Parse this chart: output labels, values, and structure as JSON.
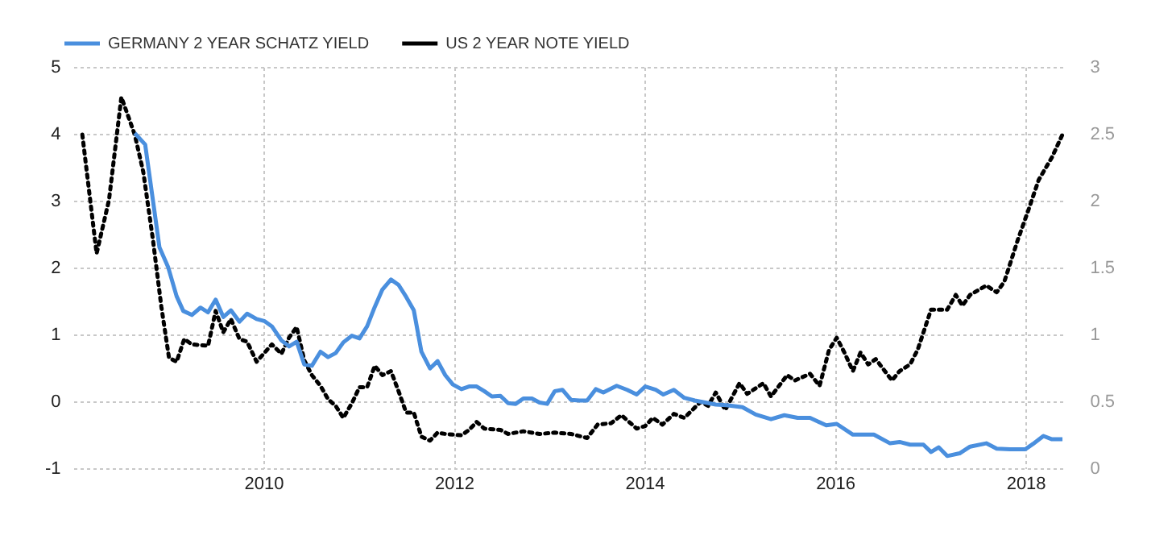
{
  "chart_data": {
    "type": "line",
    "series": [
      {
        "name": "GERMANY 2 YEAR SCHATZ YIELD",
        "color": "#4a8fde",
        "line_style": "solid",
        "x": [
          2008.64,
          2008.75,
          2008.9,
          2008.99,
          2009.08,
          2009.15,
          2009.24,
          2009.33,
          2009.41,
          2009.49,
          2009.57,
          2009.65,
          2009.74,
          2009.82,
          2009.92,
          2010.0,
          2010.08,
          2010.18,
          2010.26,
          2010.34,
          2010.42,
          2010.5,
          2010.59,
          2010.67,
          2010.75,
          2010.83,
          2010.92,
          2011.0,
          2011.08,
          2011.16,
          2011.24,
          2011.33,
          2011.41,
          2011.49,
          2011.57,
          2011.65,
          2011.74,
          2011.82,
          2011.9,
          2011.98,
          2012.07,
          2012.15,
          2012.23,
          2012.31,
          2012.39,
          2012.48,
          2012.56,
          2012.64,
          2012.72,
          2012.81,
          2012.89,
          2012.97,
          2013.05,
          2013.13,
          2013.22,
          2013.31,
          2013.39,
          2013.48,
          2013.56,
          2013.7,
          2013.81,
          2013.91,
          2014.0,
          2014.11,
          2014.19,
          2014.3,
          2014.41,
          2014.52,
          2014.63,
          2014.74,
          2014.85,
          2015.02,
          2015.16,
          2015.32,
          2015.46,
          2015.6,
          2015.73,
          2015.9,
          2016.01,
          2016.18,
          2016.4,
          2016.57,
          2016.67,
          2016.78,
          2016.92,
          2017.0,
          2017.08,
          2017.17,
          2017.3,
          2017.41,
          2017.58,
          2017.69,
          2017.83,
          2017.99,
          2018.07,
          2018.18,
          2018.27,
          2018.38
        ],
        "values": [
          4.02,
          3.85,
          2.31,
          2.02,
          1.58,
          1.36,
          1.3,
          1.41,
          1.34,
          1.53,
          1.27,
          1.37,
          1.2,
          1.32,
          1.24,
          1.21,
          1.13,
          0.92,
          0.83,
          0.9,
          0.56,
          0.54,
          0.75,
          0.67,
          0.73,
          0.89,
          0.99,
          0.95,
          1.13,
          1.42,
          1.68,
          1.83,
          1.75,
          1.57,
          1.37,
          0.75,
          0.5,
          0.61,
          0.4,
          0.26,
          0.19,
          0.23,
          0.23,
          0.16,
          0.08,
          0.09,
          -0.02,
          -0.03,
          0.05,
          0.05,
          -0.01,
          -0.03,
          0.16,
          0.18,
          0.03,
          0.02,
          0.02,
          0.19,
          0.14,
          0.24,
          0.18,
          0.11,
          0.23,
          0.18,
          0.11,
          0.18,
          0.06,
          0.02,
          -0.01,
          -0.04,
          -0.05,
          -0.08,
          -0.19,
          -0.26,
          -0.2,
          -0.24,
          -0.24,
          -0.35,
          -0.33,
          -0.49,
          -0.49,
          -0.62,
          -0.6,
          -0.64,
          -0.64,
          -0.75,
          -0.68,
          -0.81,
          -0.77,
          -0.67,
          -0.62,
          -0.7,
          -0.71,
          -0.71,
          -0.63,
          -0.51,
          -0.56,
          -0.56
        ]
      },
      {
        "name": "US 2 YEAR NOTE YIELD",
        "color": "#000000",
        "line_style": "dotted",
        "axis": "y2",
        "x": [
          2008.09,
          2008.24,
          2008.37,
          2008.5,
          2008.64,
          2008.73,
          2008.83,
          2008.92,
          2009.0,
          2009.08,
          2009.16,
          2009.24,
          2009.41,
          2009.49,
          2009.57,
          2009.65,
          2009.74,
          2009.82,
          2009.92,
          2010.08,
          2010.18,
          2010.26,
          2010.34,
          2010.42,
          2010.5,
          2010.59,
          2010.67,
          2010.75,
          2010.83,
          2010.92,
          2011.0,
          2011.08,
          2011.16,
          2011.24,
          2011.33,
          2011.41,
          2011.49,
          2011.57,
          2011.65,
          2011.74,
          2011.82,
          2011.9,
          2012.07,
          2012.15,
          2012.23,
          2012.31,
          2012.48,
          2012.56,
          2012.72,
          2012.89,
          2013.05,
          2013.22,
          2013.39,
          2013.5,
          2013.64,
          2013.75,
          2013.91,
          2014.0,
          2014.08,
          2014.18,
          2014.3,
          2014.41,
          2014.58,
          2014.66,
          2014.74,
          2014.84,
          2014.99,
          2015.07,
          2015.24,
          2015.32,
          2015.49,
          2015.57,
          2015.73,
          2015.83,
          2015.93,
          2016.01,
          2016.09,
          2016.18,
          2016.26,
          2016.34,
          2016.42,
          2016.59,
          2016.67,
          2016.78,
          2016.86,
          2017.0,
          2017.17,
          2017.26,
          2017.33,
          2017.41,
          2017.58,
          2017.69,
          2017.77,
          2017.91,
          2018.02,
          2018.13,
          2018.27,
          2018.38
        ],
        "values": [
          2.5,
          1.61,
          2.01,
          2.78,
          2.5,
          2.22,
          1.72,
          1.21,
          0.83,
          0.8,
          0.97,
          0.93,
          0.92,
          1.18,
          1.02,
          1.12,
          0.97,
          0.95,
          0.8,
          0.93,
          0.86,
          0.98,
          1.06,
          0.81,
          0.7,
          0.62,
          0.52,
          0.47,
          0.38,
          0.49,
          0.61,
          0.61,
          0.77,
          0.7,
          0.73,
          0.58,
          0.42,
          0.42,
          0.24,
          0.21,
          0.27,
          0.26,
          0.25,
          0.29,
          0.35,
          0.3,
          0.29,
          0.26,
          0.28,
          0.26,
          0.27,
          0.26,
          0.23,
          0.33,
          0.34,
          0.4,
          0.3,
          0.32,
          0.38,
          0.33,
          0.41,
          0.38,
          0.5,
          0.47,
          0.57,
          0.44,
          0.64,
          0.56,
          0.64,
          0.54,
          0.7,
          0.66,
          0.71,
          0.62,
          0.89,
          0.98,
          0.87,
          0.73,
          0.87,
          0.78,
          0.82,
          0.66,
          0.73,
          0.78,
          0.89,
          1.19,
          1.19,
          1.3,
          1.22,
          1.3,
          1.37,
          1.32,
          1.4,
          1.71,
          1.93,
          2.16,
          2.33,
          2.5
        ]
      }
    ],
    "xlim": [
      2008,
      2018.4
    ],
    "xticks": [
      2010,
      2012,
      2014,
      2016,
      2018
    ],
    "ylim": [
      -1,
      5
    ],
    "yticks": [
      -1,
      0,
      1,
      2,
      3,
      4,
      5
    ],
    "y2lim": [
      0,
      3
    ],
    "y2ticks": [
      0,
      0.5,
      1,
      1.5,
      2,
      2.5,
      3
    ],
    "grid": true,
    "legend": "top left",
    "marker": "none"
  }
}
